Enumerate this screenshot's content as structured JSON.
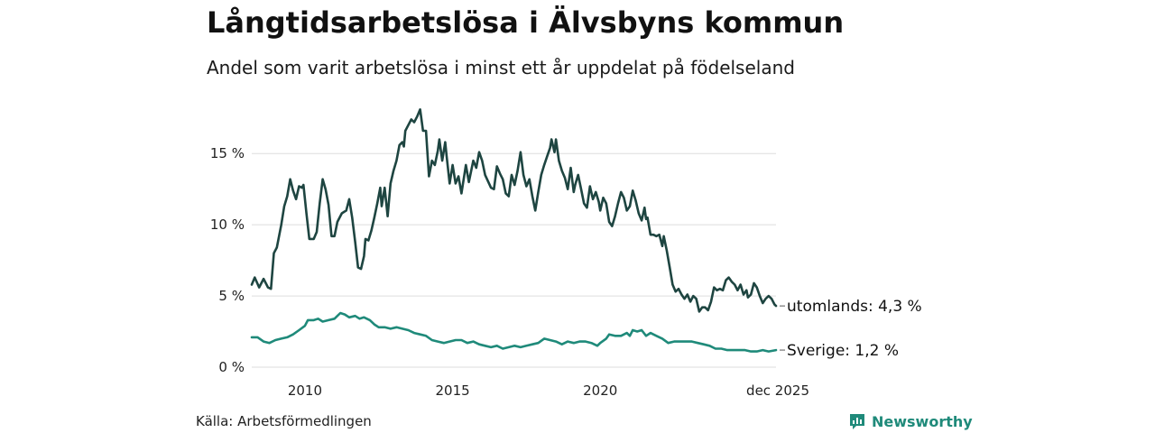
{
  "colors": {
    "accent": "#1f8a7a",
    "series_dark": "#1e4541",
    "series_teal": "#1f8a7a",
    "grid": "#dddddd"
  },
  "chart_data": {
    "type": "line",
    "title": "Långtidsarbetslösa i Älvsbyns kommun",
    "subtitle": "Andel som varit arbetslösa i minst ett år uppdelat på födelseland",
    "x_ticks": [
      {
        "value": 2010,
        "label": "2010"
      },
      {
        "value": 2015,
        "label": "2015"
      },
      {
        "value": 2020,
        "label": "2020"
      },
      {
        "value": 2025.95,
        "label": "dec 2025"
      }
    ],
    "y_ticks": [
      {
        "value": 0,
        "label": "0 %"
      },
      {
        "value": 5,
        "label": "5 %"
      },
      {
        "value": 10,
        "label": "10 %"
      },
      {
        "value": 15,
        "label": "15 %"
      }
    ],
    "xlim": [
      2008.2,
      2025.95
    ],
    "ylim": [
      0,
      18.5
    ],
    "series": [
      {
        "name": "utomlands",
        "end_label": "utomlands: 4,3 %",
        "color": "#1e4541",
        "points": [
          [
            2008.2,
            5.8
          ],
          [
            2008.3,
            6.3
          ],
          [
            2008.45,
            5.6
          ],
          [
            2008.6,
            6.2
          ],
          [
            2008.75,
            5.6
          ],
          [
            2008.85,
            5.5
          ],
          [
            2008.95,
            8.0
          ],
          [
            2009.05,
            8.4
          ],
          [
            2009.2,
            10.0
          ],
          [
            2009.3,
            11.3
          ],
          [
            2009.4,
            12.0
          ],
          [
            2009.5,
            13.2
          ],
          [
            2009.6,
            12.4
          ],
          [
            2009.7,
            11.8
          ],
          [
            2009.8,
            12.7
          ],
          [
            2009.9,
            12.6
          ],
          [
            2009.95,
            12.8
          ],
          [
            2010.05,
            10.8
          ],
          [
            2010.15,
            9.0
          ],
          [
            2010.3,
            9.0
          ],
          [
            2010.4,
            9.5
          ],
          [
            2010.5,
            11.5
          ],
          [
            2010.6,
            13.2
          ],
          [
            2010.7,
            12.5
          ],
          [
            2010.8,
            11.4
          ],
          [
            2010.9,
            9.2
          ],
          [
            2011.0,
            9.2
          ],
          [
            2011.1,
            10.2
          ],
          [
            2011.25,
            10.8
          ],
          [
            2011.4,
            11.0
          ],
          [
            2011.5,
            11.8
          ],
          [
            2011.6,
            10.5
          ],
          [
            2011.7,
            8.8
          ],
          [
            2011.8,
            7.0
          ],
          [
            2011.9,
            6.9
          ],
          [
            2012.0,
            7.8
          ],
          [
            2012.05,
            9.0
          ],
          [
            2012.15,
            8.9
          ],
          [
            2012.25,
            9.6
          ],
          [
            2012.35,
            10.5
          ],
          [
            2012.45,
            11.5
          ],
          [
            2012.55,
            12.6
          ],
          [
            2012.6,
            11.3
          ],
          [
            2012.7,
            12.6
          ],
          [
            2012.8,
            10.6
          ],
          [
            2012.9,
            12.9
          ],
          [
            2013.0,
            13.8
          ],
          [
            2013.1,
            14.5
          ],
          [
            2013.2,
            15.6
          ],
          [
            2013.3,
            15.8
          ],
          [
            2013.35,
            15.5
          ],
          [
            2013.4,
            16.6
          ],
          [
            2013.5,
            17.0
          ],
          [
            2013.6,
            17.4
          ],
          [
            2013.7,
            17.2
          ],
          [
            2013.8,
            17.6
          ],
          [
            2013.9,
            18.1
          ],
          [
            2014.0,
            16.6
          ],
          [
            2014.1,
            16.6
          ],
          [
            2014.2,
            13.4
          ],
          [
            2014.3,
            14.5
          ],
          [
            2014.4,
            14.2
          ],
          [
            2014.5,
            15.2
          ],
          [
            2014.55,
            16.0
          ],
          [
            2014.65,
            14.5
          ],
          [
            2014.75,
            15.8
          ],
          [
            2014.8,
            14.8
          ],
          [
            2014.9,
            12.9
          ],
          [
            2015.0,
            14.2
          ],
          [
            2015.1,
            12.9
          ],
          [
            2015.2,
            13.4
          ],
          [
            2015.3,
            12.2
          ],
          [
            2015.45,
            14.2
          ],
          [
            2015.55,
            13.0
          ],
          [
            2015.7,
            14.5
          ],
          [
            2015.8,
            14.0
          ],
          [
            2015.9,
            15.1
          ],
          [
            2016.0,
            14.5
          ],
          [
            2016.1,
            13.5
          ],
          [
            2016.3,
            12.6
          ],
          [
            2016.4,
            12.5
          ],
          [
            2016.5,
            14.1
          ],
          [
            2016.6,
            13.6
          ],
          [
            2016.7,
            13.2
          ],
          [
            2016.8,
            12.2
          ],
          [
            2016.9,
            12.0
          ],
          [
            2017.0,
            13.5
          ],
          [
            2017.1,
            12.8
          ],
          [
            2017.2,
            13.8
          ],
          [
            2017.3,
            15.1
          ],
          [
            2017.4,
            13.5
          ],
          [
            2017.5,
            12.7
          ],
          [
            2017.6,
            13.2
          ],
          [
            2017.7,
            12.0
          ],
          [
            2017.8,
            11.0
          ],
          [
            2017.9,
            12.3
          ],
          [
            2018.0,
            13.5
          ],
          [
            2018.1,
            14.2
          ],
          [
            2018.2,
            14.8
          ],
          [
            2018.3,
            15.4
          ],
          [
            2018.35,
            16.0
          ],
          [
            2018.45,
            15.1
          ],
          [
            2018.5,
            16.0
          ],
          [
            2018.6,
            14.5
          ],
          [
            2018.7,
            13.8
          ],
          [
            2018.8,
            13.3
          ],
          [
            2018.9,
            12.5
          ],
          [
            2019.0,
            14.0
          ],
          [
            2019.1,
            12.3
          ],
          [
            2019.15,
            12.8
          ],
          [
            2019.25,
            13.5
          ],
          [
            2019.35,
            12.5
          ],
          [
            2019.45,
            11.5
          ],
          [
            2019.55,
            11.2
          ],
          [
            2019.65,
            12.7
          ],
          [
            2019.75,
            11.8
          ],
          [
            2019.85,
            12.3
          ],
          [
            2019.95,
            11.6
          ],
          [
            2020.0,
            11.0
          ],
          [
            2020.1,
            11.9
          ],
          [
            2020.2,
            11.5
          ],
          [
            2020.3,
            10.2
          ],
          [
            2020.4,
            9.9
          ],
          [
            2020.5,
            10.6
          ],
          [
            2020.6,
            11.5
          ],
          [
            2020.7,
            12.3
          ],
          [
            2020.8,
            11.9
          ],
          [
            2020.9,
            11.0
          ],
          [
            2021.0,
            11.3
          ],
          [
            2021.1,
            12.4
          ],
          [
            2021.2,
            11.7
          ],
          [
            2021.3,
            10.8
          ],
          [
            2021.4,
            10.3
          ],
          [
            2021.5,
            11.2
          ],
          [
            2021.55,
            10.4
          ],
          [
            2021.6,
            10.5
          ],
          [
            2021.7,
            9.3
          ],
          [
            2021.8,
            9.3
          ],
          [
            2021.9,
            9.2
          ],
          [
            2022.0,
            9.3
          ],
          [
            2022.1,
            8.5
          ],
          [
            2022.15,
            9.2
          ],
          [
            2022.25,
            8.2
          ],
          [
            2022.35,
            7.0
          ],
          [
            2022.45,
            5.8
          ],
          [
            2022.55,
            5.3
          ],
          [
            2022.65,
            5.5
          ],
          [
            2022.75,
            5.1
          ],
          [
            2022.85,
            4.8
          ],
          [
            2022.95,
            5.1
          ],
          [
            2023.05,
            4.6
          ],
          [
            2023.15,
            5.0
          ],
          [
            2023.25,
            4.8
          ],
          [
            2023.35,
            3.9
          ],
          [
            2023.45,
            4.2
          ],
          [
            2023.55,
            4.2
          ],
          [
            2023.65,
            4.0
          ],
          [
            2023.75,
            4.6
          ],
          [
            2023.85,
            5.6
          ],
          [
            2023.95,
            5.4
          ],
          [
            2024.05,
            5.5
          ],
          [
            2024.15,
            5.4
          ],
          [
            2024.25,
            6.1
          ],
          [
            2024.35,
            6.3
          ],
          [
            2024.45,
            6.0
          ],
          [
            2024.55,
            5.8
          ],
          [
            2024.65,
            5.4
          ],
          [
            2024.75,
            5.8
          ],
          [
            2024.85,
            5.1
          ],
          [
            2024.95,
            5.4
          ],
          [
            2025.0,
            4.9
          ],
          [
            2025.1,
            5.1
          ],
          [
            2025.2,
            5.9
          ],
          [
            2025.3,
            5.6
          ],
          [
            2025.4,
            5.0
          ],
          [
            2025.5,
            4.5
          ],
          [
            2025.6,
            4.8
          ],
          [
            2025.7,
            5.0
          ],
          [
            2025.8,
            4.8
          ],
          [
            2025.9,
            4.4
          ],
          [
            2025.95,
            4.3
          ]
        ]
      },
      {
        "name": "Sverige",
        "end_label": "Sverige: 1,2 %",
        "color": "#1f8a7a",
        "points": [
          [
            2008.2,
            2.1
          ],
          [
            2008.4,
            2.1
          ],
          [
            2008.6,
            1.8
          ],
          [
            2008.8,
            1.7
          ],
          [
            2009.0,
            1.9
          ],
          [
            2009.2,
            2.0
          ],
          [
            2009.4,
            2.1
          ],
          [
            2009.6,
            2.3
          ],
          [
            2009.8,
            2.6
          ],
          [
            2010.0,
            2.9
          ],
          [
            2010.1,
            3.3
          ],
          [
            2010.3,
            3.3
          ],
          [
            2010.45,
            3.4
          ],
          [
            2010.6,
            3.2
          ],
          [
            2010.8,
            3.3
          ],
          [
            2011.0,
            3.4
          ],
          [
            2011.1,
            3.6
          ],
          [
            2011.2,
            3.8
          ],
          [
            2011.35,
            3.7
          ],
          [
            2011.5,
            3.5
          ],
          [
            2011.7,
            3.6
          ],
          [
            2011.85,
            3.4
          ],
          [
            2012.0,
            3.5
          ],
          [
            2012.2,
            3.3
          ],
          [
            2012.35,
            3.0
          ],
          [
            2012.5,
            2.8
          ],
          [
            2012.7,
            2.8
          ],
          [
            2012.9,
            2.7
          ],
          [
            2013.1,
            2.8
          ],
          [
            2013.3,
            2.7
          ],
          [
            2013.5,
            2.6
          ],
          [
            2013.7,
            2.4
          ],
          [
            2013.9,
            2.3
          ],
          [
            2014.1,
            2.2
          ],
          [
            2014.3,
            1.9
          ],
          [
            2014.5,
            1.8
          ],
          [
            2014.7,
            1.7
          ],
          [
            2014.9,
            1.8
          ],
          [
            2015.1,
            1.9
          ],
          [
            2015.3,
            1.9
          ],
          [
            2015.5,
            1.7
          ],
          [
            2015.7,
            1.8
          ],
          [
            2015.9,
            1.6
          ],
          [
            2016.1,
            1.5
          ],
          [
            2016.3,
            1.4
          ],
          [
            2016.5,
            1.5
          ],
          [
            2016.7,
            1.3
          ],
          [
            2016.9,
            1.4
          ],
          [
            2017.1,
            1.5
          ],
          [
            2017.3,
            1.4
          ],
          [
            2017.5,
            1.5
          ],
          [
            2017.7,
            1.6
          ],
          [
            2017.9,
            1.7
          ],
          [
            2018.1,
            2.0
          ],
          [
            2018.3,
            1.9
          ],
          [
            2018.5,
            1.8
          ],
          [
            2018.7,
            1.6
          ],
          [
            2018.9,
            1.8
          ],
          [
            2019.1,
            1.7
          ],
          [
            2019.3,
            1.8
          ],
          [
            2019.5,
            1.8
          ],
          [
            2019.7,
            1.7
          ],
          [
            2019.9,
            1.5
          ],
          [
            2020.0,
            1.7
          ],
          [
            2020.2,
            2.0
          ],
          [
            2020.3,
            2.3
          ],
          [
            2020.5,
            2.2
          ],
          [
            2020.7,
            2.2
          ],
          [
            2020.9,
            2.4
          ],
          [
            2021.0,
            2.2
          ],
          [
            2021.1,
            2.6
          ],
          [
            2021.25,
            2.5
          ],
          [
            2021.4,
            2.6
          ],
          [
            2021.55,
            2.2
          ],
          [
            2021.7,
            2.4
          ],
          [
            2021.9,
            2.2
          ],
          [
            2022.1,
            2.0
          ],
          [
            2022.3,
            1.7
          ],
          [
            2022.5,
            1.8
          ],
          [
            2022.7,
            1.8
          ],
          [
            2022.9,
            1.8
          ],
          [
            2023.1,
            1.8
          ],
          [
            2023.3,
            1.7
          ],
          [
            2023.5,
            1.6
          ],
          [
            2023.7,
            1.5
          ],
          [
            2023.9,
            1.3
          ],
          [
            2024.1,
            1.3
          ],
          [
            2024.3,
            1.2
          ],
          [
            2024.5,
            1.2
          ],
          [
            2024.7,
            1.2
          ],
          [
            2024.9,
            1.2
          ],
          [
            2025.1,
            1.1
          ],
          [
            2025.3,
            1.1
          ],
          [
            2025.5,
            1.2
          ],
          [
            2025.7,
            1.1
          ],
          [
            2025.95,
            1.2
          ]
        ]
      }
    ]
  },
  "footer": {
    "source": "Källa: Arbetsförmedlingen",
    "brand": "Newsworthy"
  }
}
